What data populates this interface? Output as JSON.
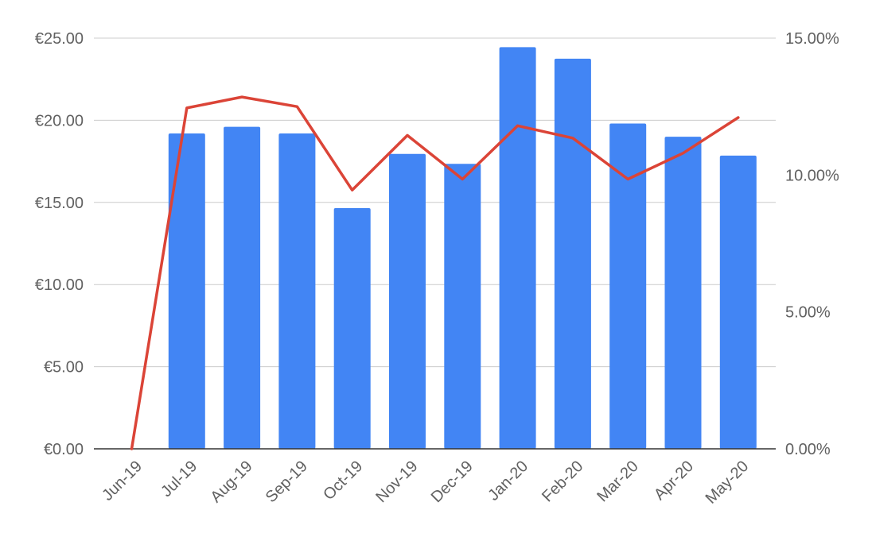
{
  "chart_data": {
    "type": "bar",
    "categories": [
      "Jun-19",
      "Jul-19",
      "Aug-19",
      "Sep-19",
      "Oct-19",
      "Nov-19",
      "Dec-19",
      "Jan-20",
      "Feb-20",
      "Mar-20",
      "Apr-20",
      "May-20"
    ],
    "series": [
      {
        "type": "bar",
        "axis": "left",
        "color": "#4285f4",
        "values": [
          0,
          19.2,
          19.6,
          19.2,
          14.65,
          17.95,
          17.35,
          24.45,
          23.75,
          19.8,
          19.0,
          17.85
        ]
      },
      {
        "type": "line",
        "axis": "right",
        "color": "#db4437",
        "values": [
          0.0,
          12.45,
          12.85,
          12.5,
          9.45,
          11.45,
          9.85,
          11.8,
          11.35,
          9.85,
          10.8,
          12.1
        ]
      }
    ],
    "y_left": {
      "range": [
        0,
        25
      ],
      "ticks": [
        0,
        5,
        10,
        15,
        20,
        25
      ],
      "tick_labels": [
        "€0.00",
        "€5.00",
        "€10.00",
        "€15.00",
        "€20.00",
        "€25.00"
      ]
    },
    "y_right": {
      "range": [
        0,
        15
      ],
      "ticks": [
        0,
        5,
        10,
        15
      ],
      "tick_labels": [
        "0.00%",
        "5.00%",
        "10.00%",
        "15.00%"
      ]
    },
    "grid": true,
    "legend": "none",
    "title": "",
    "xlabel": "",
    "ylabel": ""
  }
}
